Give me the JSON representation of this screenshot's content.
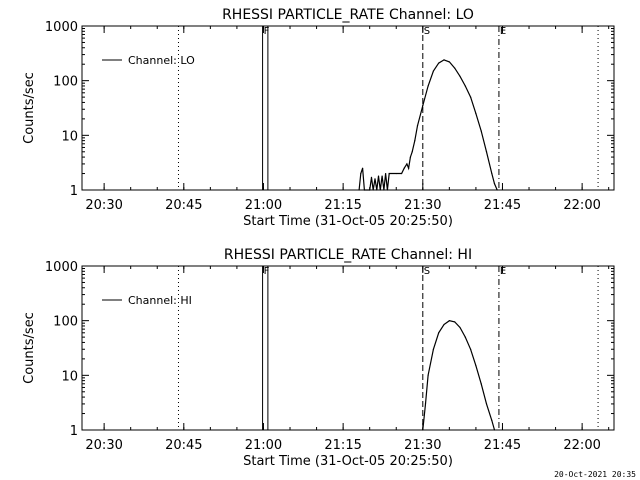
{
  "footer_timestamp": "20-Oct-2021 20:35",
  "chart_data": [
    {
      "type": "line",
      "title": "RHESSI PARTICLE_RATE Channel: LO",
      "xlabel": "Start Time (31-Oct-05 20:25:50)",
      "ylabel": "Counts/sec",
      "x_scale": "time",
      "y_scale": "log",
      "xlim": [
        "20:25:50",
        "22:06:00"
      ],
      "ylim": [
        1,
        1000
      ],
      "x_ticks": [
        "20:30",
        "20:45",
        "21:00",
        "21:15",
        "21:30",
        "21:45",
        "22:00"
      ],
      "y_ticks": [
        "1",
        "10",
        "100",
        "1000"
      ],
      "legend": {
        "position": "top-left",
        "entries": [
          "Channel: LO"
        ]
      },
      "markers": [
        {
          "label": "F",
          "times": [
            "20:59:50",
            "21:00:50"
          ],
          "style": "solid"
        },
        {
          "label": "S",
          "times": [
            "21:30:00"
          ],
          "style": "dashed"
        },
        {
          "label": "E",
          "times": [
            "21:44:20"
          ],
          "style": "dash-dot"
        }
      ],
      "dotted_lines": [
        "20:44:00",
        "22:03:00"
      ],
      "series": [
        {
          "name": "Channel: LO",
          "points": [
            [
              "21:18:00",
              1
            ],
            [
              "21:18:20",
              2
            ],
            [
              "21:18:40",
              2.5
            ],
            [
              "21:19:00",
              1
            ],
            [
              "21:20:00",
              1
            ],
            [
              "21:20:20",
              1.7
            ],
            [
              "21:20:40",
              1
            ],
            [
              "21:21:00",
              1.6
            ],
            [
              "21:21:20",
              1
            ],
            [
              "21:21:40",
              1.8
            ],
            [
              "21:22:00",
              1
            ],
            [
              "21:22:20",
              1.8
            ],
            [
              "21:22:40",
              1
            ],
            [
              "21:23:00",
              2
            ],
            [
              "21:23:20",
              1
            ],
            [
              "21:23:40",
              2
            ],
            [
              "21:25:00",
              2
            ],
            [
              "21:26:00",
              2
            ],
            [
              "21:26:30",
              2.5
            ],
            [
              "21:27:00",
              3
            ],
            [
              "21:27:20",
              2.5
            ],
            [
              "21:27:40",
              4
            ],
            [
              "21:28:00",
              5
            ],
            [
              "21:28:30",
              8
            ],
            [
              "21:29:00",
              15
            ],
            [
              "21:30:00",
              35
            ],
            [
              "21:31:00",
              80
            ],
            [
              "21:32:00",
              150
            ],
            [
              "21:33:00",
              210
            ],
            [
              "21:34:00",
              240
            ],
            [
              "21:35:00",
              220
            ],
            [
              "21:36:00",
              170
            ],
            [
              "21:37:00",
              120
            ],
            [
              "21:38:00",
              80
            ],
            [
              "21:39:00",
              50
            ],
            [
              "21:40:00",
              25
            ],
            [
              "21:41:00",
              12
            ],
            [
              "21:42:00",
              5
            ],
            [
              "21:43:00",
              2
            ],
            [
              "21:43:30",
              1.3
            ],
            [
              "21:44:00",
              1
            ]
          ]
        }
      ]
    },
    {
      "type": "line",
      "title": "RHESSI PARTICLE_RATE Channel: HI",
      "xlabel": "Start Time (31-Oct-05 20:25:50)",
      "ylabel": "Counts/sec",
      "x_scale": "time",
      "y_scale": "log",
      "xlim": [
        "20:25:50",
        "22:06:00"
      ],
      "ylim": [
        1,
        1000
      ],
      "x_ticks": [
        "20:30",
        "20:45",
        "21:00",
        "21:15",
        "21:30",
        "21:45",
        "22:00"
      ],
      "y_ticks": [
        "1",
        "10",
        "100",
        "1000"
      ],
      "legend": {
        "position": "top-left",
        "entries": [
          "Channel: HI"
        ]
      },
      "markers": [
        {
          "label": "F",
          "times": [
            "20:59:50",
            "21:00:50"
          ],
          "style": "solid"
        },
        {
          "label": "S",
          "times": [
            "21:30:00"
          ],
          "style": "dashed"
        },
        {
          "label": "E",
          "times": [
            "21:44:20"
          ],
          "style": "dash-dot"
        }
      ],
      "dotted_lines": [
        "20:44:00",
        "22:03:00"
      ],
      "series": [
        {
          "name": "Channel: HI",
          "points": [
            [
              "21:30:00",
              1
            ],
            [
              "21:30:30",
              3
            ],
            [
              "21:31:00",
              10
            ],
            [
              "21:32:00",
              30
            ],
            [
              "21:33:00",
              60
            ],
            [
              "21:34:00",
              85
            ],
            [
              "21:35:00",
              100
            ],
            [
              "21:36:00",
              95
            ],
            [
              "21:37:00",
              75
            ],
            [
              "21:38:00",
              50
            ],
            [
              "21:39:00",
              30
            ],
            [
              "21:40:00",
              15
            ],
            [
              "21:41:00",
              7
            ],
            [
              "21:42:00",
              3
            ],
            [
              "21:43:00",
              1.5
            ],
            [
              "21:43:30",
              1
            ]
          ]
        }
      ]
    }
  ]
}
